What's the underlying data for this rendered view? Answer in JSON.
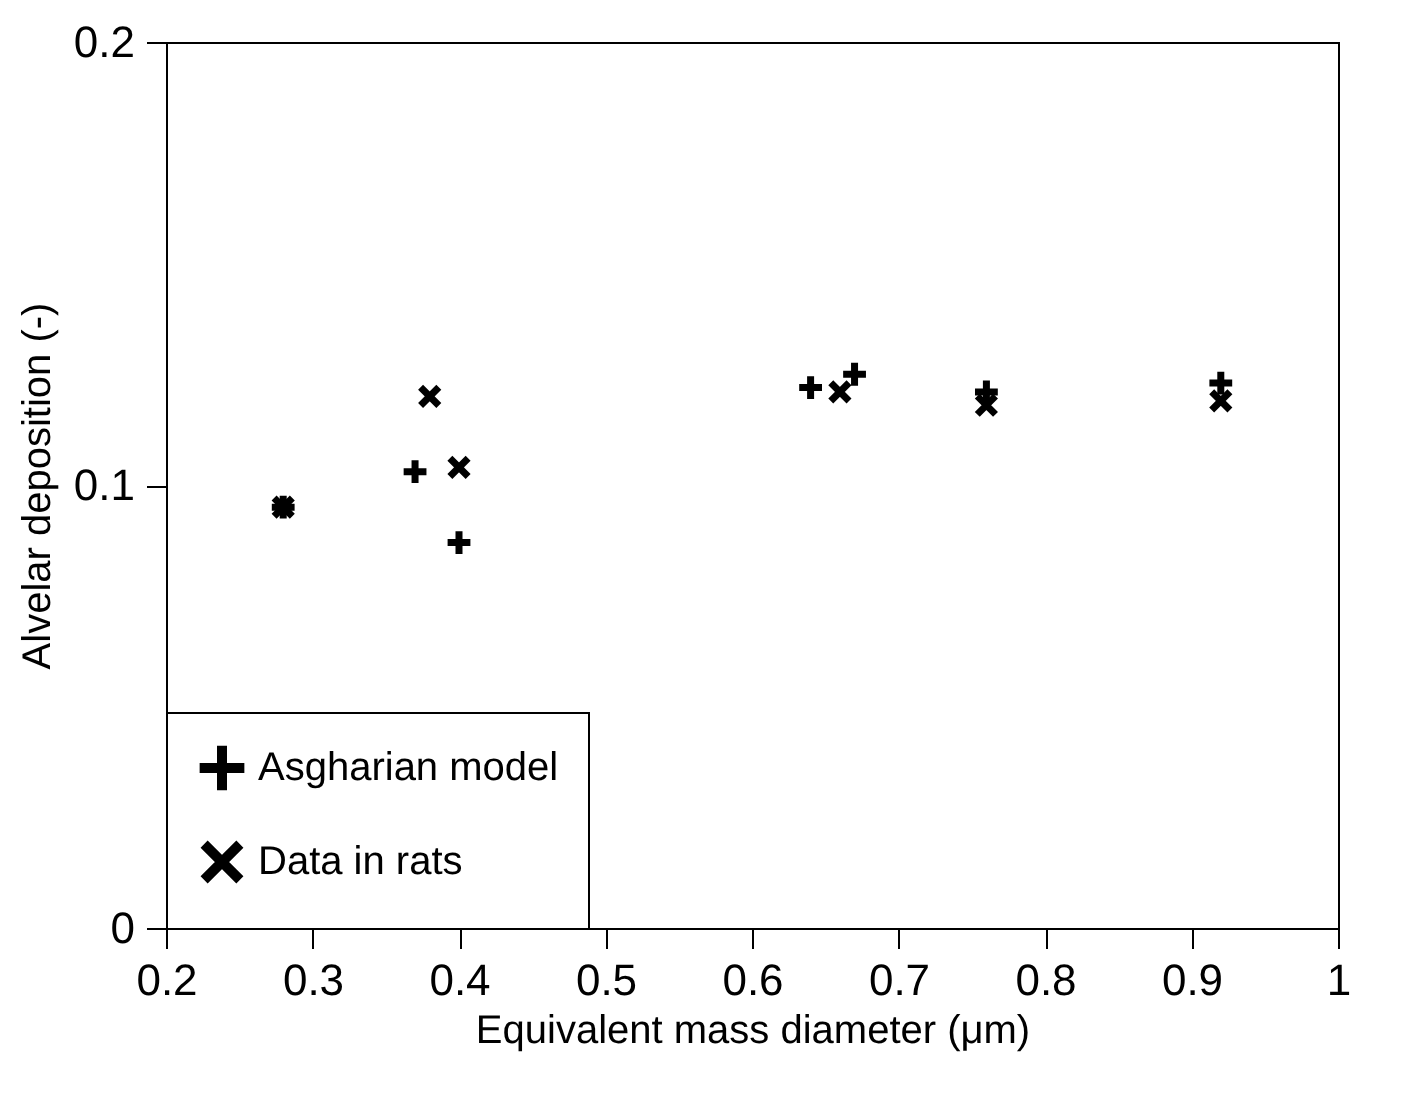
{
  "chart_data": {
    "type": "scatter",
    "xlabel": "Equivalent mass diameter (μm)",
    "ylabel": "Alvelar deposition (-)",
    "xlim": [
      0.2,
      1
    ],
    "xticks": [
      0.2,
      0.3,
      0.4,
      0.5,
      0.6,
      0.7,
      0.8,
      0.9,
      1
    ],
    "ylim": [
      0,
      0.2
    ],
    "yticks": [
      0,
      0.1,
      0.2
    ],
    "grid": false,
    "legend": "bottom left",
    "series": [
      {
        "name": "Asgharian model",
        "color": "#000000",
        "marker": "cross",
        "x": [
          0.28,
          0.37,
          0.4,
          0.64,
          0.67,
          0.76,
          0.92
        ],
        "values": [
          0.095,
          0.103,
          0.087,
          0.122,
          0.125,
          0.121,
          0.123
        ]
      },
      {
        "name": "Data in rats",
        "color": "#000000",
        "marker": "x",
        "x": [
          0.28,
          0.38,
          0.4,
          0.66,
          0.76,
          0.92
        ],
        "values": [
          0.095,
          0.12,
          0.104,
          0.121,
          0.118,
          0.119
        ]
      }
    ]
  }
}
